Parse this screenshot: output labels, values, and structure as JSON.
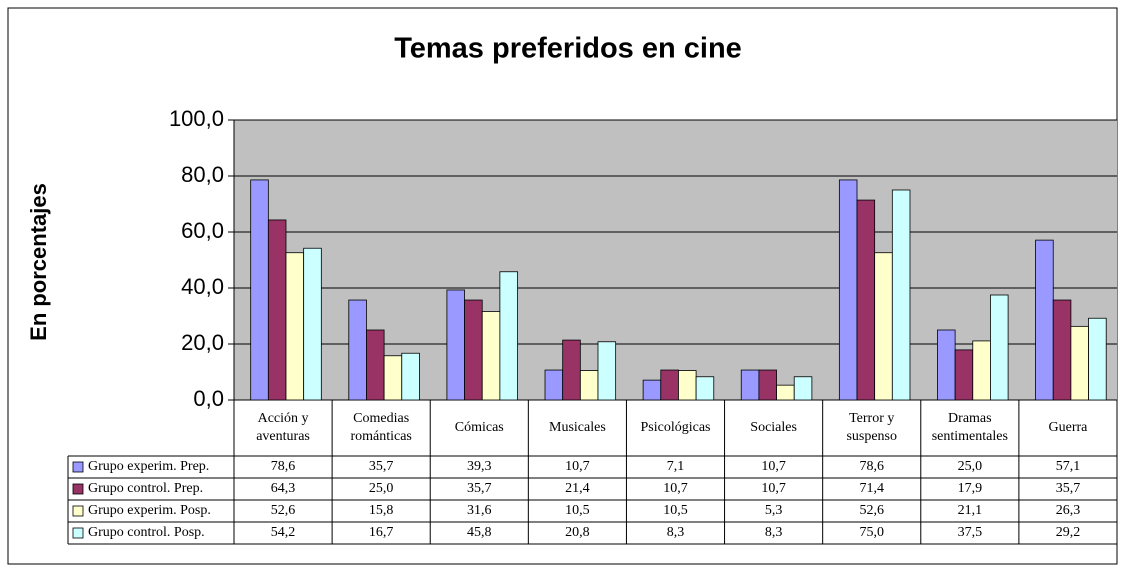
{
  "chart_data": {
    "type": "bar",
    "title": "Temas preferidos en cine",
    "y_label": "En porcentajes",
    "categories": [
      "Acción y\naventuras",
      "Comedias\nrománticas",
      "Cómicas",
      "Musicales",
      "Psicológicas",
      "Sociales",
      "Terror y\nsuspenso",
      "Dramas\nsentimentales",
      "Guerra"
    ],
    "series": [
      {
        "name": "Grupo experim. Prep.",
        "color": "#9999ff",
        "values": [
          78.6,
          35.7,
          39.3,
          10.7,
          7.1,
          10.7,
          78.6,
          25.0,
          57.1
        ],
        "value_labels": [
          "78,6",
          "35,7",
          "39,3",
          "10,7",
          "7,1",
          "10,7",
          "78,6",
          "25,0",
          "57,1"
        ]
      },
      {
        "name": "Grupo control. Prep.",
        "color": "#993366",
        "values": [
          64.3,
          25.0,
          35.7,
          21.4,
          10.7,
          10.7,
          71.4,
          17.9,
          35.7
        ],
        "value_labels": [
          "64,3",
          "25,0",
          "35,7",
          "21,4",
          "10,7",
          "10,7",
          "71,4",
          "17,9",
          "35,7"
        ]
      },
      {
        "name": "Grupo experim. Posp.",
        "color": "#ffffcc",
        "values": [
          52.6,
          15.8,
          31.6,
          10.5,
          10.5,
          5.3,
          52.6,
          21.1,
          26.3
        ],
        "value_labels": [
          "52,6",
          "15,8",
          "31,6",
          "10,5",
          "10,5",
          "5,3",
          "52,6",
          "21,1",
          "26,3"
        ]
      },
      {
        "name": "Grupo control. Posp.",
        "color": "#ccffff",
        "values": [
          54.2,
          16.7,
          45.8,
          20.8,
          8.3,
          8.3,
          75.0,
          37.5,
          29.2
        ],
        "value_labels": [
          "54,2",
          "16,7",
          "45,8",
          "20,8",
          "8,3",
          "8,3",
          "75,0",
          "37,5",
          "29,2"
        ]
      }
    ],
    "ylim": [
      0,
      100
    ],
    "yticks": [
      {
        "value": 0,
        "label": "0,0"
      },
      {
        "value": 20,
        "label": "20,0"
      },
      {
        "value": 40,
        "label": "40,0"
      },
      {
        "value": 60,
        "label": "60,0"
      },
      {
        "value": 80,
        "label": "80,0"
      },
      {
        "value": 100,
        "label": "100,0"
      }
    ],
    "grid": true,
    "plot_background": "#c0c0c0"
  }
}
